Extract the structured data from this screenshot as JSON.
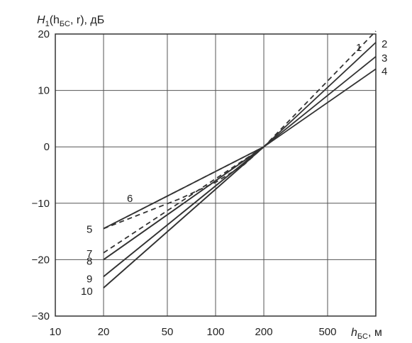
{
  "chart_data": {
    "type": "line",
    "title": "",
    "ylabel_main": "H",
    "ylabel_sub": "1",
    "ylabel_args_open": "(h",
    "ylabel_args_sub": "БС",
    "ylabel_args_close": ", r), дБ",
    "xlabel_main": "h",
    "xlabel_sub": "БС",
    "xlabel_unit": ", м",
    "x_scale": "log",
    "xlim": [
      10,
      1000
    ],
    "ylim": [
      -30,
      20
    ],
    "grid": true,
    "x_tick_labels": [
      "10",
      "20",
      "50",
      "100",
      "200",
      "500"
    ],
    "x_tick_values": [
      10,
      20,
      50,
      100,
      200,
      500,
      1000
    ],
    "y_tick_labels": [
      "20",
      "10",
      "0",
      "−10",
      "−20",
      "−30"
    ],
    "y_tick_values": [
      20,
      10,
      0,
      -10,
      -20,
      -30
    ],
    "series": [
      {
        "name": "1",
        "dashed": true,
        "x": [
          20,
          200,
          1000
        ],
        "y": [
          -14.5,
          0,
          20.5
        ]
      },
      {
        "name": "2",
        "dashed": false,
        "x": [
          20,
          200,
          1000
        ],
        "y": [
          -25,
          0,
          18.5
        ]
      },
      {
        "name": "3",
        "dashed": false,
        "x": [
          20,
          200,
          1000
        ],
        "y": [
          -23,
          0,
          16
        ]
      },
      {
        "name": "4",
        "dashed": false,
        "x": [
          20,
          200,
          1000
        ],
        "y": [
          -20,
          0,
          13.8
        ]
      },
      {
        "name": "5",
        "dashed": false,
        "x": [
          20,
          200
        ],
        "y": [
          -14.5,
          0
        ]
      },
      {
        "name": "6",
        "dashed": true,
        "x": [
          20,
          35,
          60,
          100,
          150,
          200
        ],
        "y": [
          -14.5,
          -11.8,
          -9.2,
          -6.3,
          -3.2,
          0
        ]
      },
      {
        "name": "7",
        "dashed": true,
        "x": [
          20,
          200
        ],
        "y": [
          -18.8,
          0
        ]
      },
      {
        "name": "8",
        "dashed": false,
        "x": [
          20,
          200
        ],
        "y": [
          -20,
          0
        ]
      },
      {
        "name": "9",
        "dashed": false,
        "x": [
          20,
          200
        ],
        "y": [
          -23,
          0
        ]
      },
      {
        "name": "10",
        "dashed": false,
        "x": [
          20,
          200
        ],
        "y": [
          -25,
          0
        ]
      }
    ],
    "curve_labels": [
      {
        "text": "1",
        "anchor": "end-upper"
      },
      {
        "text": "2",
        "anchor": "end"
      },
      {
        "text": "3",
        "anchor": "end"
      },
      {
        "text": "4",
        "anchor": "end"
      },
      {
        "text": "5",
        "anchor": "start"
      },
      {
        "text": "6",
        "anchor": "start"
      },
      {
        "text": "7",
        "anchor": "start"
      },
      {
        "text": "8",
        "anchor": "start"
      },
      {
        "text": "9",
        "anchor": "start"
      },
      {
        "text": "10",
        "anchor": "start"
      }
    ]
  }
}
